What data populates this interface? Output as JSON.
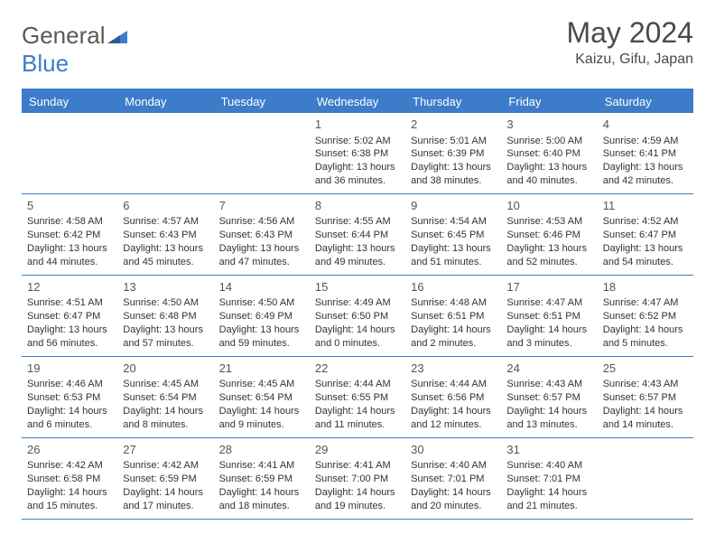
{
  "brand": {
    "part1": "General",
    "part2": "Blue"
  },
  "title": "May 2024",
  "location": "Kaizu, Gifu, Japan",
  "colors": {
    "accent": "#3d7cc9",
    "text": "#333333",
    "header_text": "#ffffff",
    "title_text": "#4a4a4a",
    "bg": "#ffffff"
  },
  "day_headers": [
    "Sunday",
    "Monday",
    "Tuesday",
    "Wednesday",
    "Thursday",
    "Friday",
    "Saturday"
  ],
  "weeks": [
    [
      null,
      null,
      null,
      {
        "d": "1",
        "sr": "5:02 AM",
        "ss": "6:38 PM",
        "dl": "13 hours and 36 minutes."
      },
      {
        "d": "2",
        "sr": "5:01 AM",
        "ss": "6:39 PM",
        "dl": "13 hours and 38 minutes."
      },
      {
        "d": "3",
        "sr": "5:00 AM",
        "ss": "6:40 PM",
        "dl": "13 hours and 40 minutes."
      },
      {
        "d": "4",
        "sr": "4:59 AM",
        "ss": "6:41 PM",
        "dl": "13 hours and 42 minutes."
      }
    ],
    [
      {
        "d": "5",
        "sr": "4:58 AM",
        "ss": "6:42 PM",
        "dl": "13 hours and 44 minutes."
      },
      {
        "d": "6",
        "sr": "4:57 AM",
        "ss": "6:43 PM",
        "dl": "13 hours and 45 minutes."
      },
      {
        "d": "7",
        "sr": "4:56 AM",
        "ss": "6:43 PM",
        "dl": "13 hours and 47 minutes."
      },
      {
        "d": "8",
        "sr": "4:55 AM",
        "ss": "6:44 PM",
        "dl": "13 hours and 49 minutes."
      },
      {
        "d": "9",
        "sr": "4:54 AM",
        "ss": "6:45 PM",
        "dl": "13 hours and 51 minutes."
      },
      {
        "d": "10",
        "sr": "4:53 AM",
        "ss": "6:46 PM",
        "dl": "13 hours and 52 minutes."
      },
      {
        "d": "11",
        "sr": "4:52 AM",
        "ss": "6:47 PM",
        "dl": "13 hours and 54 minutes."
      }
    ],
    [
      {
        "d": "12",
        "sr": "4:51 AM",
        "ss": "6:47 PM",
        "dl": "13 hours and 56 minutes."
      },
      {
        "d": "13",
        "sr": "4:50 AM",
        "ss": "6:48 PM",
        "dl": "13 hours and 57 minutes."
      },
      {
        "d": "14",
        "sr": "4:50 AM",
        "ss": "6:49 PM",
        "dl": "13 hours and 59 minutes."
      },
      {
        "d": "15",
        "sr": "4:49 AM",
        "ss": "6:50 PM",
        "dl": "14 hours and 0 minutes."
      },
      {
        "d": "16",
        "sr": "4:48 AM",
        "ss": "6:51 PM",
        "dl": "14 hours and 2 minutes."
      },
      {
        "d": "17",
        "sr": "4:47 AM",
        "ss": "6:51 PM",
        "dl": "14 hours and 3 minutes."
      },
      {
        "d": "18",
        "sr": "4:47 AM",
        "ss": "6:52 PM",
        "dl": "14 hours and 5 minutes."
      }
    ],
    [
      {
        "d": "19",
        "sr": "4:46 AM",
        "ss": "6:53 PM",
        "dl": "14 hours and 6 minutes."
      },
      {
        "d": "20",
        "sr": "4:45 AM",
        "ss": "6:54 PM",
        "dl": "14 hours and 8 minutes."
      },
      {
        "d": "21",
        "sr": "4:45 AM",
        "ss": "6:54 PM",
        "dl": "14 hours and 9 minutes."
      },
      {
        "d": "22",
        "sr": "4:44 AM",
        "ss": "6:55 PM",
        "dl": "14 hours and 11 minutes."
      },
      {
        "d": "23",
        "sr": "4:44 AM",
        "ss": "6:56 PM",
        "dl": "14 hours and 12 minutes."
      },
      {
        "d": "24",
        "sr": "4:43 AM",
        "ss": "6:57 PM",
        "dl": "14 hours and 13 minutes."
      },
      {
        "d": "25",
        "sr": "4:43 AM",
        "ss": "6:57 PM",
        "dl": "14 hours and 14 minutes."
      }
    ],
    [
      {
        "d": "26",
        "sr": "4:42 AM",
        "ss": "6:58 PM",
        "dl": "14 hours and 15 minutes."
      },
      {
        "d": "27",
        "sr": "4:42 AM",
        "ss": "6:59 PM",
        "dl": "14 hours and 17 minutes."
      },
      {
        "d": "28",
        "sr": "4:41 AM",
        "ss": "6:59 PM",
        "dl": "14 hours and 18 minutes."
      },
      {
        "d": "29",
        "sr": "4:41 AM",
        "ss": "7:00 PM",
        "dl": "14 hours and 19 minutes."
      },
      {
        "d": "30",
        "sr": "4:40 AM",
        "ss": "7:01 PM",
        "dl": "14 hours and 20 minutes."
      },
      {
        "d": "31",
        "sr": "4:40 AM",
        "ss": "7:01 PM",
        "dl": "14 hours and 21 minutes."
      },
      null
    ]
  ],
  "labels": {
    "sunrise": "Sunrise:",
    "sunset": "Sunset:",
    "daylight": "Daylight:"
  }
}
